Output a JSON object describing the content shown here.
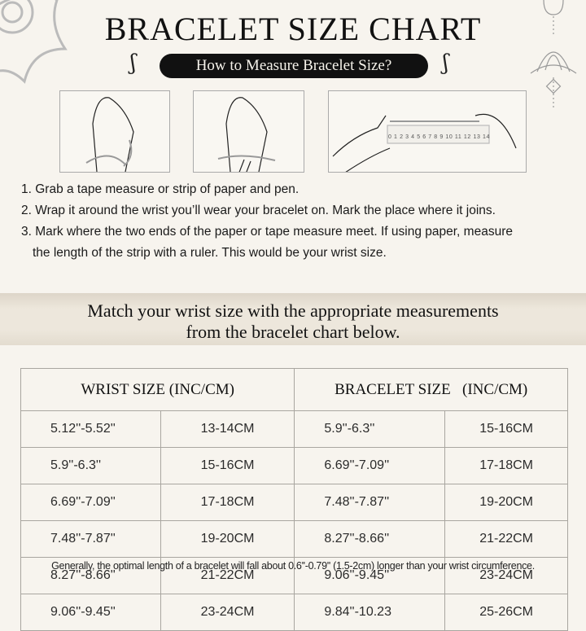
{
  "title": "BRACELET SIZE CHART",
  "subtitle": "How to Measure Bracelet Size?",
  "ruler_numbers": "0 1 2 3 4 5 6 7 8 9 10 11 12 13 14",
  "steps": [
    "1. Grab a tape measure or strip of paper and pen.",
    "2. Wrap it around the wrist you’ll wear your bracelet on. Mark the place where it joins.",
    "3. Mark where the two ends of the paper or tape measure meet. If using paper, measure",
    "the length of the strip with a ruler. This would be your wrist size."
  ],
  "band": {
    "line1": "Match your wrist size with the appropriate measurements",
    "line2": "from the bracelet chart below."
  },
  "table": {
    "headers": [
      "WRIST SIZE (INC/CM)",
      "BRACELET SIZE   (INC/CM)"
    ],
    "rows": [
      [
        "5.12''-5.52''",
        "13-14CM",
        "5.9''-6.3''",
        "15-16CM"
      ],
      [
        "5.9''-6.3''",
        "15-16CM",
        "6.69''-7.09''",
        "17-18CM"
      ],
      [
        "6.69''-7.09''",
        "17-18CM",
        "7.48''-7.87''",
        "19-20CM"
      ],
      [
        "7.48''-7.87''",
        "19-20CM",
        "8.27''-8.66''",
        "21-22CM"
      ],
      [
        "8.27''-8.66''",
        "21-22CM",
        "9.06''-9.45''",
        "23-24CM"
      ],
      [
        "9.06''-9.45''",
        "23-24CM",
        "9.84''-10.23",
        "25-26CM"
      ]
    ]
  },
  "note": "Generally, the optimal length of a bracelet will fall about 0.6''-0.79'' (1.5-2cm) longer than your wrist circumference."
}
